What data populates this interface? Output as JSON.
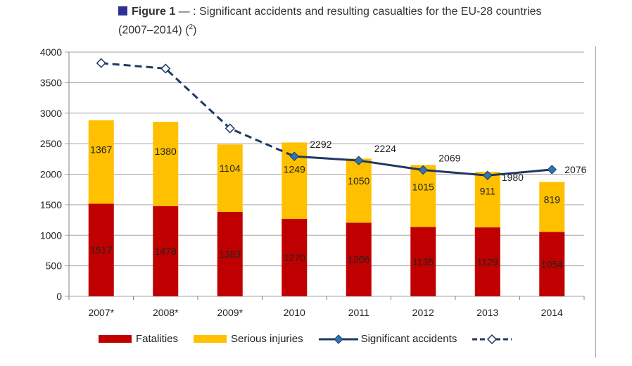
{
  "title": {
    "figure_label": "Figure 1",
    "text": " — : Significant accidents and resulting casualties for the EU-28 countries",
    "line2": "(2007–2014) (",
    "footnote": "2",
    "line2_end": ")"
  },
  "colors": {
    "title_square": "#2e3192",
    "fatalities": "#c00000",
    "serious_injuries": "#ffc000",
    "accidents_line": "#1f3864",
    "accidents_marker": "#2e75b6",
    "grid": "#a6a6a6"
  },
  "legend": {
    "fatalities": "Fatalities",
    "serious_injuries": "Serious injuries",
    "significant_accidents": "Significant accidents"
  },
  "chart_data": {
    "type": "bar",
    "stacked": true,
    "categories": [
      "2007*",
      "2008*",
      "2009*",
      "2010",
      "2011",
      "2012",
      "2013",
      "2014"
    ],
    "series": [
      {
        "name": "Fatalities",
        "type": "bar",
        "values": [
          1517,
          1478,
          1383,
          1270,
          1206,
          1135,
          1129,
          1054
        ]
      },
      {
        "name": "Serious injuries",
        "type": "bar",
        "values": [
          1367,
          1380,
          1104,
          1249,
          1050,
          1015,
          911,
          819
        ]
      },
      {
        "name": "Significant accidents",
        "type": "line",
        "values": [
          null,
          null,
          null,
          2292,
          2224,
          2069,
          1980,
          2076
        ]
      },
      {
        "type": "line",
        "style": "dashed-hollow",
        "values": [
          3820,
          3730,
          2750,
          2292,
          null,
          null,
          null,
          null
        ]
      }
    ],
    "bar_labels_shown": true,
    "line_labels": [
      "",
      "",
      "",
      "2292",
      "2224",
      "2069",
      "1980",
      "2076"
    ],
    "ylim": [
      0,
      4000
    ],
    "yticks": [
      "0",
      "500",
      "1000",
      "1500",
      "2000",
      "2500",
      "3000",
      "3500",
      "4000"
    ],
    "grid": true,
    "legend_position": "bottom"
  }
}
